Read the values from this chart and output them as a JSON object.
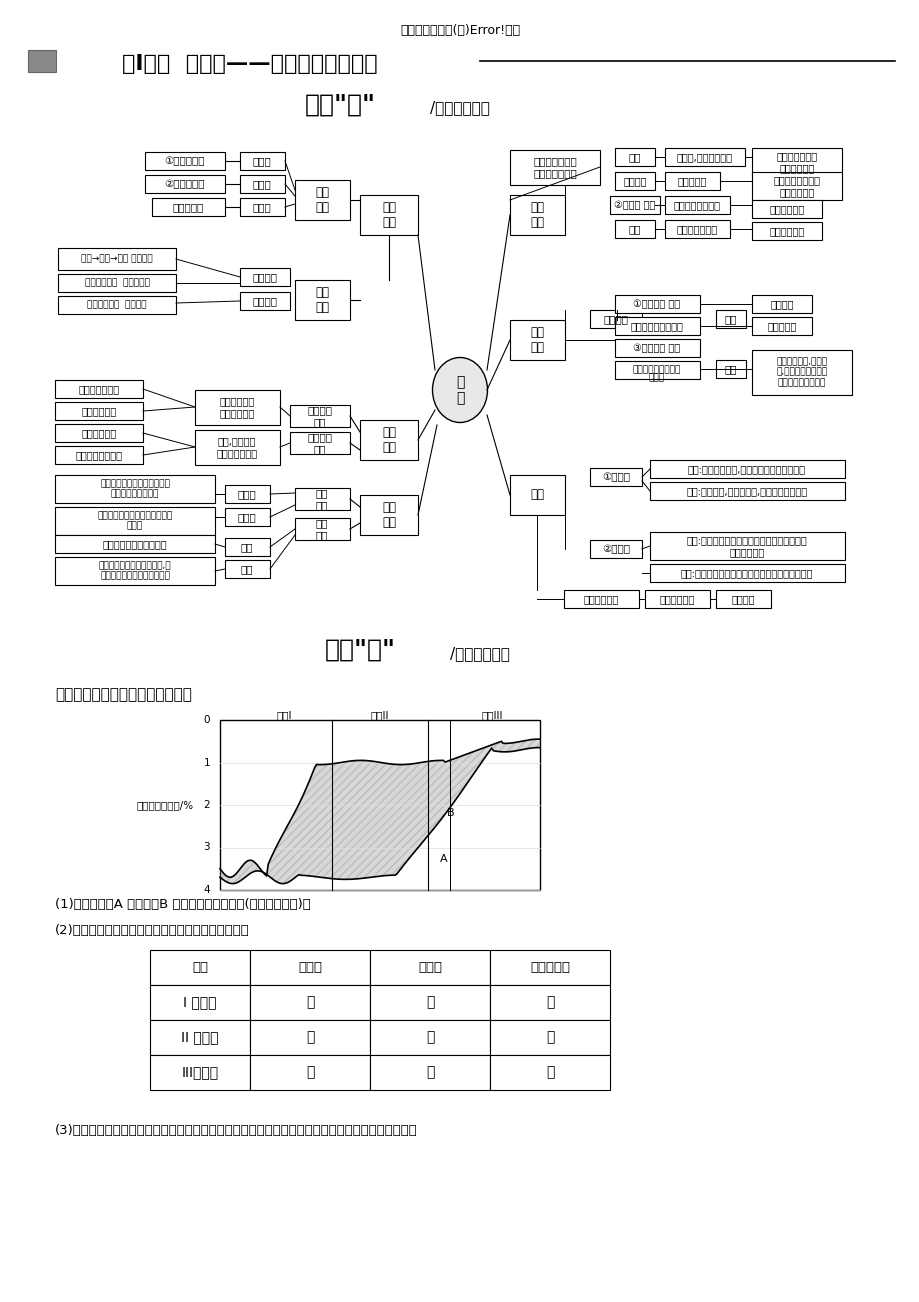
{
  "page_bg": "#ffffff",
  "top_subtitle": "五大主题要素之(五)Error!人口",
  "section_title": "第I课时  习题课——主干知识自主落实",
  "section1_heading": "形成“体”",
  "section1_subheading": "/构建知识体系",
  "section2_heading": "网成“面”",
  "section2_subheading": "/图串主干知识",
  "chart_section_title": "一、人口增长模式及其转变示意图",
  "chart_ylabel": "出生率与死亡率/%",
  "chart_xticks": [
    "类型I",
    "类型II",
    "类型III"
  ],
  "chart_yticks": [
    0,
    1,
    2,
    3,
    4
  ],
  "label_A": "A",
  "label_B": "B",
  "question1": "(1)构成指标：A 出生率、B 死亡率和自然增长率(图中阴影部分)。",
  "question2": "(2)填表完成人口增长模式的类型及三项指标的特点：",
  "question3": "(3)从图中可以看出，人口增长模式的转变是从死亡率的下降开始的，至出生率下降到一定水平结束。",
  "table_headers": [
    "类型",
    "出生率",
    "死亡率",
    "自然增长率"
  ],
  "table_rows": [
    [
      "I 原始型",
      "高",
      "高",
      "低"
    ],
    [
      "II 传统型",
      "高",
      "低",
      "高"
    ],
    [
      "III现代型",
      "低",
      "低",
      "低"
    ]
  ]
}
